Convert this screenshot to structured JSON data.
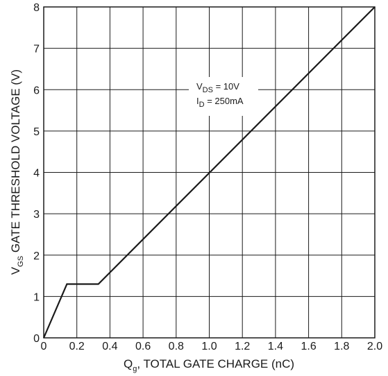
{
  "chart_data": {
    "type": "line",
    "xlabel": {
      "main": "Q",
      "sub": "g",
      "rest": ", TOTAL GATE CHARGE (nC)"
    },
    "ylabel": {
      "main": "V",
      "sub": "GS",
      "rest": " GATE THRESHOLD VOLTAGE (V)"
    },
    "xlim": [
      0,
      2.0
    ],
    "ylim": [
      0,
      8
    ],
    "x_ticks": [
      0,
      0.2,
      0.4,
      0.6,
      0.8,
      1.0,
      1.2,
      1.4,
      1.6,
      1.8,
      2.0
    ],
    "x_tick_labels": [
      "0",
      "0.2",
      "0.4",
      "0.6",
      "0.8",
      "1.0",
      "1.2",
      "1.4",
      "1.6",
      "1.8",
      "2.0"
    ],
    "y_ticks": [
      0,
      1,
      2,
      3,
      4,
      5,
      6,
      7,
      8
    ],
    "y_tick_labels": [
      "0",
      "1",
      "2",
      "3",
      "4",
      "5",
      "6",
      "7",
      "8"
    ],
    "grid": true,
    "series": [
      {
        "x": [
          0,
          0.14,
          0.33,
          2.0
        ],
        "y": [
          0,
          1.3,
          1.3,
          8.0
        ]
      }
    ],
    "annotations": [
      {
        "main": "V",
        "sub": "DS",
        "rest": " = 10V"
      },
      {
        "main": "I",
        "sub": "D",
        "rest": " = 250mA"
      }
    ]
  }
}
